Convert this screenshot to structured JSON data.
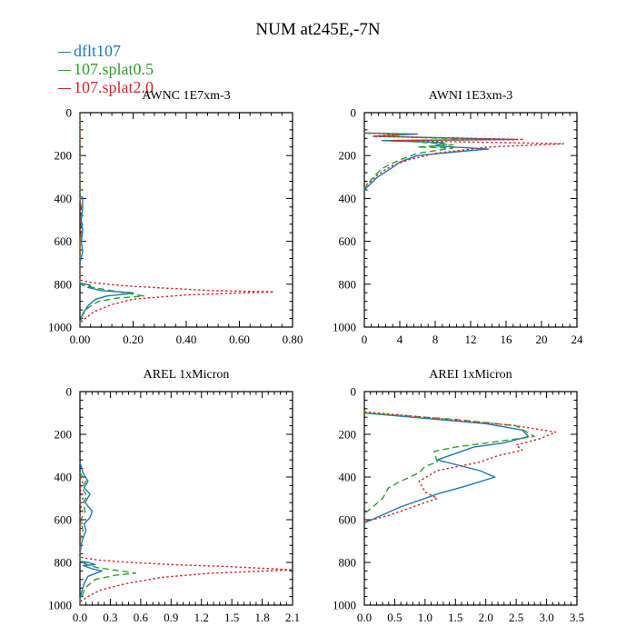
{
  "figure_title": "NUM at245E,-7N",
  "legend": [
    {
      "label": "dflt107",
      "color": "#1f77b4",
      "dash": "solid"
    },
    {
      "label": "107.splat0.5",
      "color": "#2ca02c",
      "dash": "dashed"
    },
    {
      "label": "107.splat2.0",
      "color": "#d62728",
      "dash": "dotted"
    }
  ],
  "chart_data": [
    {
      "type": "line",
      "title": "AWNC  1E7xm-3",
      "xlim": [
        0,
        0.8
      ],
      "ylim": [
        1000,
        0
      ],
      "xticks": [
        "0.00",
        "0.20",
        "0.40",
        "0.60",
        "0.80"
      ],
      "yticks": [
        "0",
        "200",
        "400",
        "600",
        "800",
        "1000"
      ],
      "xtick_values": [
        0,
        0.2,
        0.4,
        0.6,
        0.8
      ],
      "ytick_values": [
        0,
        200,
        400,
        600,
        800,
        1000
      ],
      "series": [
        {
          "name": "dflt107",
          "points": [
            [
              0,
              0
            ],
            [
              0,
              390
            ],
            [
              0.01,
              395
            ],
            [
              0.01,
              450
            ],
            [
              0.005,
              500
            ],
            [
              0.01,
              550
            ],
            [
              0.005,
              600
            ],
            [
              0.01,
              650
            ],
            [
              0,
              700
            ],
            [
              0,
              795
            ],
            [
              0.02,
              800
            ],
            [
              0.04,
              805
            ],
            [
              0.03,
              815
            ],
            [
              0.08,
              830
            ],
            [
              0.2,
              840
            ],
            [
              0.18,
              845
            ],
            [
              0.1,
              855
            ],
            [
              0.06,
              870
            ],
            [
              0.03,
              900
            ],
            [
              0.01,
              940
            ],
            [
              0,
              980
            ],
            [
              0,
              1000
            ]
          ]
        },
        {
          "name": "107.splat0.5",
          "points": [
            [
              0,
              0
            ],
            [
              0,
              400
            ],
            [
              0.005,
              450
            ],
            [
              0.003,
              500
            ],
            [
              0.005,
              550
            ],
            [
              0,
              600
            ],
            [
              0,
              795
            ],
            [
              0.01,
              805
            ],
            [
              0.05,
              815
            ],
            [
              0.07,
              820
            ],
            [
              0.12,
              830
            ],
            [
              0.24,
              855
            ],
            [
              0.14,
              865
            ],
            [
              0.07,
              880
            ],
            [
              0.03,
              910
            ],
            [
              0,
              960
            ],
            [
              0,
              1000
            ]
          ]
        },
        {
          "name": "107.splat2.0",
          "points": [
            [
              0,
              0
            ],
            [
              0,
              400
            ],
            [
              0.005,
              450
            ],
            [
              0.003,
              500
            ],
            [
              0.005,
              550
            ],
            [
              0,
              600
            ],
            [
              0,
              780
            ],
            [
              0.03,
              790
            ],
            [
              0.1,
              800
            ],
            [
              0.2,
              810
            ],
            [
              0.5,
              830
            ],
            [
              0.73,
              835
            ],
            [
              0.4,
              850
            ],
            [
              0.2,
              870
            ],
            [
              0.12,
              895
            ],
            [
              0.05,
              930
            ],
            [
              0.02,
              960
            ],
            [
              0,
              980
            ],
            [
              0,
              1000
            ]
          ]
        }
      ]
    },
    {
      "type": "line",
      "title": "AWNI  1E3xm-3",
      "xlim": [
        0,
        24
      ],
      "ylim": [
        1000,
        0
      ],
      "xticks": [
        "0",
        "4",
        "8",
        "12",
        "16",
        "20",
        "24"
      ],
      "yticks": [
        "0",
        "200",
        "400",
        "600",
        "800",
        "1000"
      ],
      "xtick_values": [
        0,
        4,
        8,
        12,
        16,
        20,
        24
      ],
      "ytick_values": [
        0,
        200,
        400,
        600,
        800,
        1000
      ],
      "series": [
        {
          "name": "dflt107",
          "points": [
            [
              0,
              95
            ],
            [
              6,
              100
            ],
            [
              1,
              110
            ],
            [
              17,
              125
            ],
            [
              2,
              130
            ],
            [
              9,
              140
            ],
            [
              8,
              155
            ],
            [
              14,
              170
            ],
            [
              11,
              180
            ],
            [
              6,
              200
            ],
            [
              4,
              230
            ],
            [
              3,
              260
            ],
            [
              1.5,
              300
            ],
            [
              0.5,
              340
            ],
            [
              0,
              360
            ]
          ]
        },
        {
          "name": "107.splat0.5",
          "points": [
            [
              0,
              95
            ],
            [
              5,
              100
            ],
            [
              2,
              110
            ],
            [
              13,
              125
            ],
            [
              4,
              130
            ],
            [
              10,
              150
            ],
            [
              6,
              160
            ],
            [
              10,
              165
            ],
            [
              6,
              190
            ],
            [
              4,
              220
            ],
            [
              2,
              260
            ],
            [
              1,
              300
            ],
            [
              0.3,
              340
            ],
            [
              0,
              350
            ]
          ]
        },
        {
          "name": "107.splat2.0",
          "points": [
            [
              0,
              95
            ],
            [
              4,
              100
            ],
            [
              1,
              110
            ],
            [
              18,
              125
            ],
            [
              3,
              130
            ],
            [
              22.5,
              145
            ],
            [
              14,
              160
            ],
            [
              12,
              170
            ],
            [
              8,
              190
            ],
            [
              5,
              220
            ],
            [
              3,
              250
            ],
            [
              1.5,
              290
            ],
            [
              0.5,
              330
            ],
            [
              0,
              340
            ]
          ]
        }
      ]
    },
    {
      "type": "line",
      "title": "AREL  1xMicron",
      "xlim": [
        0,
        2.1
      ],
      "ylim": [
        1000,
        0
      ],
      "xticks": [
        "0.0",
        "0.3",
        "0.6",
        "0.9",
        "1.2",
        "1.5",
        "1.8",
        "2.1"
      ],
      "yticks": [
        "0",
        "200",
        "400",
        "600",
        "800",
        "1000"
      ],
      "xtick_values": [
        0,
        0.3,
        0.6,
        0.9,
        1.2,
        1.5,
        1.8,
        2.1
      ],
      "ytick_values": [
        0,
        200,
        400,
        600,
        800,
        1000
      ],
      "series": [
        {
          "name": "dflt107",
          "points": [
            [
              0,
              330
            ],
            [
              0.03,
              380
            ],
            [
              0.08,
              420
            ],
            [
              0.04,
              450
            ],
            [
              0.1,
              480
            ],
            [
              0.05,
              520
            ],
            [
              0.12,
              560
            ],
            [
              0.1,
              590
            ],
            [
              0.04,
              620
            ],
            [
              0.06,
              650
            ],
            [
              0.02,
              700
            ],
            [
              0,
              760
            ],
            [
              0,
              795
            ],
            [
              0.08,
              800
            ],
            [
              0.15,
              810
            ],
            [
              0.03,
              815
            ],
            [
              0.12,
              830
            ],
            [
              0.22,
              840
            ],
            [
              0.16,
              850
            ],
            [
              0.08,
              865
            ],
            [
              0.04,
              900
            ],
            [
              0.01,
              950
            ],
            [
              0,
              980
            ],
            [
              0,
              1000
            ]
          ]
        },
        {
          "name": "107.splat0.5",
          "points": [
            [
              0,
              380
            ],
            [
              0.06,
              420
            ],
            [
              0.02,
              450
            ],
            [
              0.07,
              490
            ],
            [
              0.03,
              520
            ],
            [
              0.05,
              560
            ],
            [
              0.01,
              600
            ],
            [
              0.03,
              650
            ],
            [
              0,
              700
            ],
            [
              0,
              795
            ],
            [
              0.02,
              800
            ],
            [
              0.1,
              815
            ],
            [
              0.18,
              825
            ],
            [
              0.4,
              840
            ],
            [
              0.55,
              850
            ],
            [
              0.35,
              860
            ],
            [
              0.15,
              880
            ],
            [
              0.05,
              920
            ],
            [
              0.02,
              960
            ],
            [
              0,
              990
            ],
            [
              0,
              1000
            ]
          ]
        },
        {
          "name": "107.splat2.0",
          "points": [
            [
              0,
              400
            ],
            [
              0.03,
              430
            ],
            [
              0,
              450
            ],
            [
              0.03,
              500
            ],
            [
              0,
              520
            ],
            [
              0.02,
              560
            ],
            [
              0,
              580
            ],
            [
              0.03,
              610
            ],
            [
              0,
              630
            ],
            [
              0,
              775
            ],
            [
              0.05,
              780
            ],
            [
              0.2,
              790
            ],
            [
              0.5,
              800
            ],
            [
              0.9,
              810
            ],
            [
              1.5,
              820
            ],
            [
              2.1,
              835
            ],
            [
              1.3,
              850
            ],
            [
              0.8,
              870
            ],
            [
              0.45,
              900
            ],
            [
              0.2,
              930
            ],
            [
              0.08,
              960
            ],
            [
              0,
              985
            ],
            [
              0,
              1000
            ]
          ]
        }
      ]
    },
    {
      "type": "line",
      "title": "AREI  1xMicron",
      "xlim": [
        0,
        3.5
      ],
      "ylim": [
        1000,
        0
      ],
      "xticks": [
        "0.0",
        "0.5",
        "1.0",
        "1.5",
        "2.0",
        "2.5",
        "3.0",
        "3.5"
      ],
      "yticks": [
        "0",
        "200",
        "400",
        "600",
        "800",
        "1000"
      ],
      "xtick_values": [
        0,
        0.5,
        1.0,
        1.5,
        2.0,
        2.5,
        3.0,
        3.5
      ],
      "ytick_values": [
        0,
        200,
        400,
        600,
        800,
        1000
      ],
      "series": [
        {
          "name": "dflt107",
          "points": [
            [
              0,
              100
            ],
            [
              1,
              125
            ],
            [
              2.0,
              150
            ],
            [
              2.6,
              180
            ],
            [
              2.7,
              210
            ],
            [
              2.3,
              240
            ],
            [
              1.8,
              260
            ],
            [
              1.6,
              280
            ],
            [
              1.2,
              320
            ],
            [
              1.9,
              370
            ],
            [
              2.15,
              400
            ],
            [
              1.7,
              440
            ],
            [
              1.2,
              480
            ],
            [
              0.6,
              540
            ],
            [
              0.2,
              590
            ],
            [
              0,
              615
            ]
          ]
        },
        {
          "name": "107.splat0.5",
          "points": [
            [
              0,
              100
            ],
            [
              1.5,
              130
            ],
            [
              2.5,
              160
            ],
            [
              2.8,
              210
            ],
            [
              1.5,
              260
            ],
            [
              1.15,
              280
            ],
            [
              1.2,
              330
            ],
            [
              1.0,
              350
            ],
            [
              0.9,
              380
            ],
            [
              0.6,
              420
            ],
            [
              0.4,
              450
            ],
            [
              0.3,
              500
            ],
            [
              0.1,
              550
            ],
            [
              0,
              570
            ]
          ]
        },
        {
          "name": "107.splat2.0",
          "points": [
            [
              0,
              95
            ],
            [
              1,
              120
            ],
            [
              2.5,
              160
            ],
            [
              3.15,
              190
            ],
            [
              2.9,
              220
            ],
            [
              2.5,
              250
            ],
            [
              2.6,
              275
            ],
            [
              2.2,
              300
            ],
            [
              1.9,
              330
            ],
            [
              1.2,
              370
            ],
            [
              0.9,
              420
            ],
            [
              1.0,
              470
            ],
            [
              1.2,
              500
            ],
            [
              0.8,
              540
            ],
            [
              0.4,
              580
            ],
            [
              0,
              610
            ]
          ]
        }
      ]
    }
  ]
}
